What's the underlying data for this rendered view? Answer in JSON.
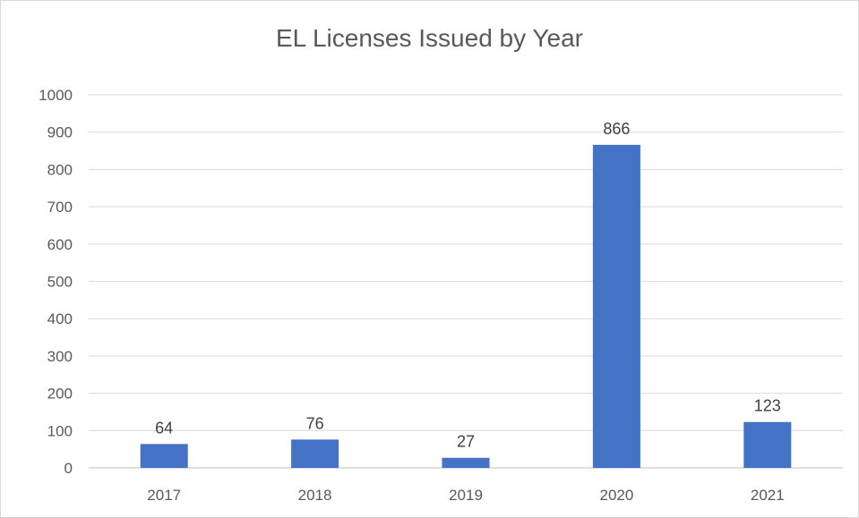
{
  "chart_data": {
    "type": "bar",
    "title": "EL Licenses Issued by Year",
    "xlabel": "",
    "ylabel": "",
    "categories": [
      "2017",
      "2018",
      "2019",
      "2020",
      "2021"
    ],
    "values": [
      64,
      76,
      27,
      866,
      123
    ],
    "data_labels": [
      "64",
      "76",
      "27",
      "866",
      "123"
    ],
    "ylim": [
      0,
      1000
    ],
    "yticks": [
      0,
      100,
      200,
      300,
      400,
      500,
      600,
      700,
      800,
      900,
      1000
    ],
    "ytick_labels": [
      "0",
      "100",
      "200",
      "300",
      "400",
      "500",
      "600",
      "700",
      "800",
      "900",
      "1000"
    ],
    "grid": true,
    "legend": "none",
    "bar_color": "#4472C4",
    "grid_color": "#d9d9d9",
    "axis_color": "#bfbfbf"
  }
}
